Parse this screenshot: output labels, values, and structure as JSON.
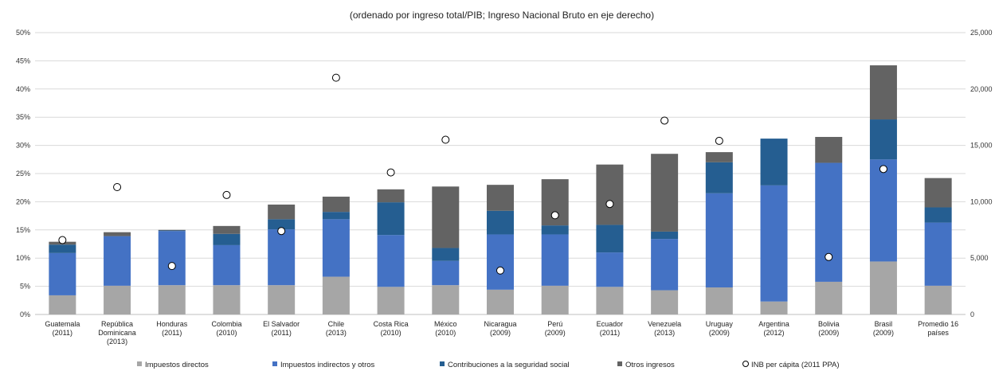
{
  "chart_data": {
    "type": "bar",
    "stacked": true,
    "subtitle": "(ordenado por ingreso total/PIB; Ingreso Nacional Bruto en eje derecho)",
    "categories": [
      [
        "Guatemala",
        "(2011)"
      ],
      [
        "República",
        "Dominicana",
        "(2013)"
      ],
      [
        "Honduras",
        "(2011)"
      ],
      [
        "Colombia",
        "(2010)"
      ],
      [
        "El Salvador",
        "(2011)"
      ],
      [
        "Chile",
        "(2013)"
      ],
      [
        "Costa Rica",
        "(2010)"
      ],
      [
        "México",
        "(2010)"
      ],
      [
        "Nicaragua",
        "(2009)"
      ],
      [
        "Perú",
        "(2009)"
      ],
      [
        "Ecuador",
        "(2011)"
      ],
      [
        "Venezuela",
        "(2013)"
      ],
      [
        "Uruguay",
        "(2009)"
      ],
      [
        "Argentina",
        "(2012)"
      ],
      [
        "Bolivia",
        "(2009)"
      ],
      [
        "Brasil",
        "(2009)"
      ],
      [
        "Promedio 16",
        "países"
      ]
    ],
    "series": [
      {
        "name": "Impuestos directos",
        "color": "#a6a6a6",
        "values": [
          3.4,
          5.1,
          5.2,
          5.2,
          5.2,
          6.7,
          4.9,
          5.2,
          4.4,
          5.1,
          4.9,
          4.3,
          4.8,
          2.3,
          5.8,
          9.4,
          5.1
        ]
      },
      {
        "name": "Impuestos indirectos y otros",
        "color": "#4472c4",
        "values": [
          7.5,
          8.8,
          9.6,
          7.1,
          9.9,
          10.2,
          9.2,
          4.3,
          9.8,
          9.1,
          6.1,
          9.1,
          16.7,
          20.6,
          21.1,
          18.1,
          11.2
        ]
      },
      {
        "name": "Contribuciones a la seguridad social",
        "color": "#255e91",
        "values": [
          1.5,
          0,
          0.1,
          2.0,
          1.8,
          1.3,
          5.8,
          2.3,
          4.2,
          1.6,
          4.9,
          1.3,
          5.5,
          8.3,
          0,
          7.1,
          2.7
        ]
      },
      {
        "name": "Otros ingresos",
        "color": "#636363",
        "values": [
          0.5,
          0.7,
          0.1,
          1.4,
          2.6,
          2.7,
          2.3,
          10.9,
          4.6,
          8.2,
          10.7,
          13.8,
          1.8,
          0,
          4.6,
          9.6,
          5.2
        ]
      }
    ],
    "points": {
      "name": "INB per cápita (2011 PPA)",
      "values": [
        6600,
        11300,
        4300,
        10600,
        7400,
        21000,
        12600,
        15500,
        3900,
        8800,
        9800,
        17200,
        15400,
        null,
        5100,
        12900,
        null
      ]
    },
    "y_left": {
      "min": 0,
      "max": 50,
      "step": 5,
      "tick_labels": [
        "0%",
        "5%",
        "10%",
        "15%",
        "20%",
        "25%",
        "30%",
        "35%",
        "40%",
        "45%",
        "50%"
      ]
    },
    "y_right": {
      "min": 0,
      "max": 25000,
      "step": 5000,
      "tick_labels": [
        "0",
        "5,000",
        "10,000",
        "15,000",
        "20,000",
        "25,000"
      ]
    },
    "grid": true,
    "legend_position": "bottom"
  }
}
